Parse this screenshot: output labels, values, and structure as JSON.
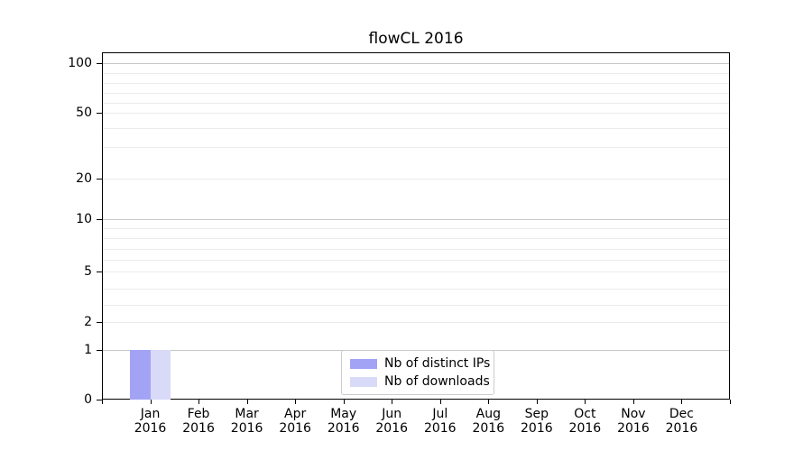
{
  "chart_data": {
    "type": "bar",
    "title": "flowCL 2016",
    "categories": [
      "Jan 2016",
      "Feb 2016",
      "Mar 2016",
      "Apr 2016",
      "May 2016",
      "Jun 2016",
      "Jul 2016",
      "Aug 2016",
      "Sep 2016",
      "Oct 2016",
      "Nov 2016",
      "Dec 2016"
    ],
    "series": [
      {
        "name": "Nb of distinct IPs",
        "color": "#a3a3f6",
        "values": [
          1,
          0,
          0,
          0,
          0,
          0,
          0,
          0,
          0,
          0,
          0,
          0
        ]
      },
      {
        "name": "Nb of downloads",
        "color": "#d9d9f8",
        "values": [
          1,
          0,
          0,
          0,
          0,
          0,
          0,
          0,
          0,
          0,
          0,
          0
        ]
      }
    ],
    "xlabel": "",
    "ylabel": "",
    "yscale": "symlog",
    "ylim": [
      0,
      110
    ],
    "ytick_labels": [
      "100",
      "50",
      "20",
      "10",
      "5",
      "2",
      "1",
      "0"
    ],
    "ytick_values": [
      100,
      50,
      20,
      10,
      5,
      2,
      1,
      0
    ],
    "grid": "horizontal major and minor gridlines",
    "legend_position": "lower center"
  },
  "colors": {
    "bar_distinct_ips": "#a3a3f6",
    "bar_downloads": "#d9d9f8",
    "grid_major": "#c8c8c8",
    "grid_minor": "#ebebeb",
    "legend_border": "#cccccc",
    "text": "#000000"
  }
}
